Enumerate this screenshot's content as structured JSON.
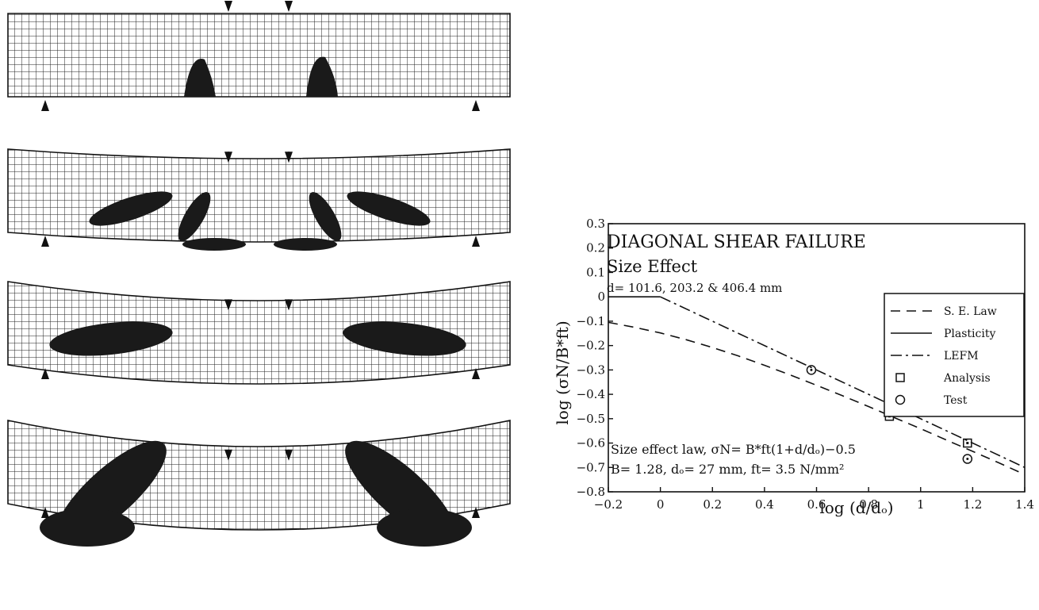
{
  "beams": [
    {
      "stage": 1,
      "deflection": 0.0,
      "damage": "two small flexural damage zones under load points"
    },
    {
      "stage": 2,
      "deflection": 0.2,
      "damage": "diagonal damage bands forming toward supports"
    },
    {
      "stage": 3,
      "deflection": 0.4,
      "damage": "large diagonal damage zones in shear spans"
    },
    {
      "stage": 4,
      "deflection": 0.55,
      "damage": "fully developed diagonal shear failure"
    }
  ],
  "chart_data": {
    "type": "line",
    "title": "DIAGONAL SHEAR  FAILURE",
    "subtitle": "Size Effect",
    "note": "d= 101.6, 203.2 & 406.4 mm",
    "xlabel": "log (d/dₒ)",
    "ylabel": "log (σN/B*ft)",
    "xlim": [
      -0.2,
      1.4
    ],
    "ylim": [
      -0.8,
      0.3
    ],
    "x_ticks": [
      -0.2,
      0,
      0.2,
      0.4,
      0.6,
      0.8,
      1,
      1.2,
      1.4
    ],
    "x_tick_labels": [
      "−0.2",
      "0",
      "0.2",
      "0.4",
      "0.6",
      "0.8",
      "1",
      "1.2",
      "1.4"
    ],
    "y_ticks": [
      0.3,
      0.2,
      0.1,
      0,
      -0.1,
      -0.2,
      -0.3,
      -0.4,
      -0.5,
      -0.6,
      -0.7,
      -0.8
    ],
    "y_tick_labels": [
      "0.3",
      "0.2",
      "0.1",
      "0",
      "−0.1",
      "−0.2",
      "−0.3",
      "−0.4",
      "−0.5",
      "−0.6",
      "−0.7",
      "−0.8"
    ],
    "legend_position": "right",
    "series": [
      {
        "name": "S. E. Law",
        "style": "dashed",
        "x": [
          -0.2,
          -0.1,
          0,
          0.1,
          0.2,
          0.3,
          0.4,
          0.5,
          0.6,
          0.7,
          0.8,
          0.9,
          1.0,
          1.1,
          1.2,
          1.3,
          1.4
        ],
        "y": [
          -0.105,
          -0.125,
          -0.148,
          -0.176,
          -0.208,
          -0.243,
          -0.281,
          -0.321,
          -0.363,
          -0.406,
          -0.45,
          -0.496,
          -0.541,
          -0.588,
          -0.634,
          -0.681,
          -0.729
        ]
      },
      {
        "name": "Plasticity",
        "style": "solid",
        "x": [
          -0.2,
          0
        ],
        "y": [
          0,
          0
        ]
      },
      {
        "name": "LEFM",
        "style": "dashdot",
        "x": [
          0,
          1.4
        ],
        "y": [
          0,
          -0.7
        ]
      },
      {
        "name": "Analysis",
        "style": "square-marker",
        "x": [
          0.88,
          1.18
        ],
        "y": [
          -0.49,
          -0.6
        ]
      },
      {
        "name": "Test",
        "style": "circle-marker",
        "x": [
          0.58,
          0.88,
          1.18
        ],
        "y": [
          -0.3,
          -0.43,
          -0.665
        ]
      }
    ],
    "annotation_line1": "Size  effect  law,  σN=  B*ft(1+d/dₒ)−0.5",
    "annotation_line2": "B=  1.28,  dₒ=  27  mm,  ft=  3.5  N/mm²"
  },
  "colors": {
    "ink": "#111111",
    "background": "#ffffff"
  }
}
